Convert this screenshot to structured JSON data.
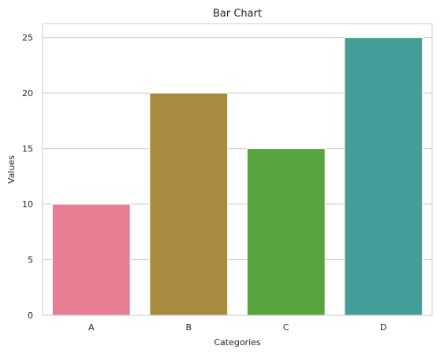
{
  "chart_data": {
    "type": "bar",
    "title": "Bar Chart",
    "xlabel": "Categories",
    "ylabel": "Values",
    "categories": [
      "A",
      "B",
      "C",
      "D"
    ],
    "values": [
      10,
      20,
      15,
      25
    ],
    "colors": [
      "#e87e92",
      "#a88b3e",
      "#58a43e",
      "#449e97"
    ],
    "ylim": [
      0,
      26.25
    ],
    "yticks": [
      0,
      5,
      10,
      15,
      20,
      25
    ],
    "grid": true,
    "legend": "none"
  }
}
